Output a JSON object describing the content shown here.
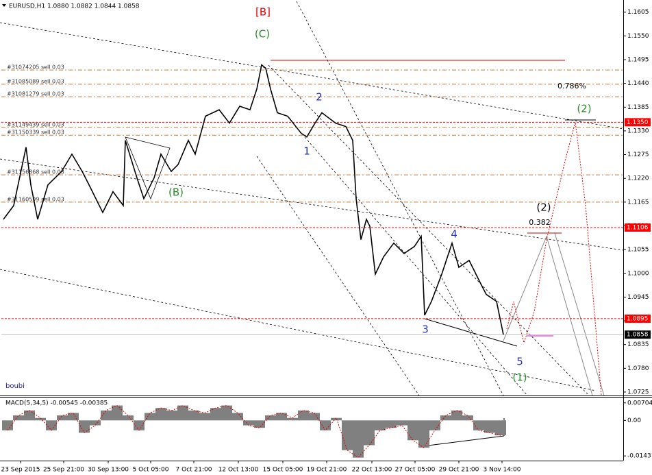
{
  "chart_data": {
    "type": "line",
    "title": "EURUSD,H1 1.0880 1.0882 1.0844 1.0858",
    "watermark": "boubi",
    "color": "#000000",
    "x": [
      3,
      18,
      36,
      43,
      53,
      68,
      88,
      103,
      118,
      128,
      148,
      163,
      178,
      181,
      198,
      208,
      223,
      233,
      248,
      258,
      273,
      283,
      298,
      318,
      333,
      348,
      363,
      373,
      380,
      386,
      393,
      403,
      418,
      438,
      446,
      458,
      468,
      488,
      503,
      513,
      518,
      525,
      533,
      538,
      546,
      558,
      573,
      588,
      603,
      613,
      618,
      628,
      643,
      658,
      668,
      683,
      698,
      708,
      723,
      733
    ],
    "values": [
      1.1125,
      1.1157,
      1.1292,
      1.1205,
      1.1125,
      1.1205,
      1.1236,
      1.1276,
      1.1236,
      1.1205,
      1.1141,
      1.1189,
      1.1157,
      1.1308,
      1.1221,
      1.1173,
      1.1221,
      1.1276,
      1.1236,
      1.1252,
      1.1308,
      1.1276,
      1.1364,
      1.1379,
      1.1348,
      1.1387,
      1.1379,
      1.1427,
      1.1483,
      1.1475,
      1.1427,
      1.1372,
      1.1364,
      1.1324,
      1.1316,
      1.1348,
      1.1372,
      1.1348,
      1.134,
      1.1308,
      1.1173,
      1.1078,
      1.1125,
      1.1109,
      1.0998,
      1.1038,
      1.107,
      1.1046,
      1.1062,
      1.1086,
      1.0903,
      1.0935,
      1.0998,
      1.107,
      1.1014,
      1.103,
      1.0982,
      1.0951,
      1.0935,
      1.0858
    ],
    "xlim": [
      0,
      908
    ],
    "ylim": [
      1.0717,
      1.163
    ],
    "xticks": [
      {
        "value": 28,
        "label": "23 Sep 2015"
      },
      {
        "value": 91,
        "label": "25 Sep 21:00"
      },
      {
        "value": 156,
        "label": "30 Sep 13:00"
      },
      {
        "value": 218,
        "label": "5 Oct 05:00"
      },
      {
        "value": 281,
        "label": "7 Oct 21:00"
      },
      {
        "value": 346,
        "label": "12 Oct 13:00"
      },
      {
        "value": 411,
        "label": "15 Oct 05:00"
      },
      {
        "value": 475,
        "label": "19 Oct 21:00"
      },
      {
        "value": 541,
        "label": "22 Oct 13:00"
      },
      {
        "value": 604,
        "label": "27 Oct 05:00"
      },
      {
        "value": 668,
        "label": "29 Oct 21:00"
      },
      {
        "value": 731,
        "label": "3 Nov 14:00"
      }
    ],
    "yticks": [
      1.1605,
      {
        "value": 1.155,
        "label": "1.1550"
      },
      1.1495,
      {
        "value": 1.144,
        "label": "1.1440"
      },
      1.1385,
      {
        "value": 1.133,
        "label": "1.1330"
      },
      1.1275,
      {
        "value": 1.122,
        "label": "1.1220"
      },
      1.1165,
      {
        "value": 1.111,
        "label": "1.1110"
      },
      1.1055,
      {
        "value": 1.1,
        "label": "1.1000"
      },
      1.0945,
      {
        "value": 1.089,
        "label": "1.0890"
      },
      1.0835,
      {
        "value": 1.078,
        "label": "1.0780"
      },
      1.0725
    ],
    "levels": [
      {
        "value": 1.135,
        "label": "1.1350",
        "color": "#ff0000"
      },
      {
        "value": 1.1106,
        "label": "1.1106",
        "color": "#ff0000"
      },
      {
        "value": 1.0895,
        "label": "1.0895",
        "color": "#ff0000"
      },
      {
        "value": 1.0858,
        "label": "1.0858",
        "color": "#000000"
      }
    ],
    "orders": [
      {
        "text": "#31074205 sell 0.03",
        "price": 1.1471
      },
      {
        "text": "#31085089 sell 0.03",
        "price": 1.1438
      },
      {
        "text": "#31081279 sell 0.03",
        "price": 1.1409
      },
      {
        "text": "#31149439 sell 0.03",
        "price": 1.1338
      },
      {
        "text": "#31150339 sell 0.03",
        "price": 1.132
      },
      {
        "text": "#31156868 sell 0.03",
        "price": 1.1228
      },
      {
        "text": "#31160599 sell 0.03",
        "price": 1.1165
      }
    ],
    "order_color": "#c8783c",
    "annotations": [
      "[B]",
      "(C)",
      "2",
      "1",
      "(B)",
      "4",
      "3",
      "5",
      "(1)",
      "(2)",
      "(2)",
      "0.786%",
      "0.382"
    ],
    "macd": {
      "title": "MACD(5,34,5) -0.00545 -0.00385",
      "color": "#808080",
      "ylim": [
        -0.0162,
        0.0092
      ],
      "yticks": [
        0.00704,
        {
          "value": 0,
          "label": "0.00"
        },
        -0.01431
      ],
      "values": [
        -0.004,
        0.002,
        0.004,
        0.001,
        -0.004,
        0.002,
        0.003,
        -0.005,
        -0.002,
        0.004,
        0.006,
        0.002,
        -0.004,
        0.003,
        0.005,
        0.004,
        0.006,
        0.004,
        0.003,
        0.005,
        0.006,
        0.003,
        -0.002,
        -0.003,
        0.002,
        0.003,
        0.001,
        0.004,
        0.003,
        -0.004,
        0.001,
        -0.012,
        -0.015,
        -0.01,
        -0.004,
        -0.003,
        -0.002,
        -0.008,
        -0.011,
        -0.004,
        0.002,
        0.004,
        0.002,
        -0.004,
        -0.005,
        -0.006
      ]
    }
  }
}
